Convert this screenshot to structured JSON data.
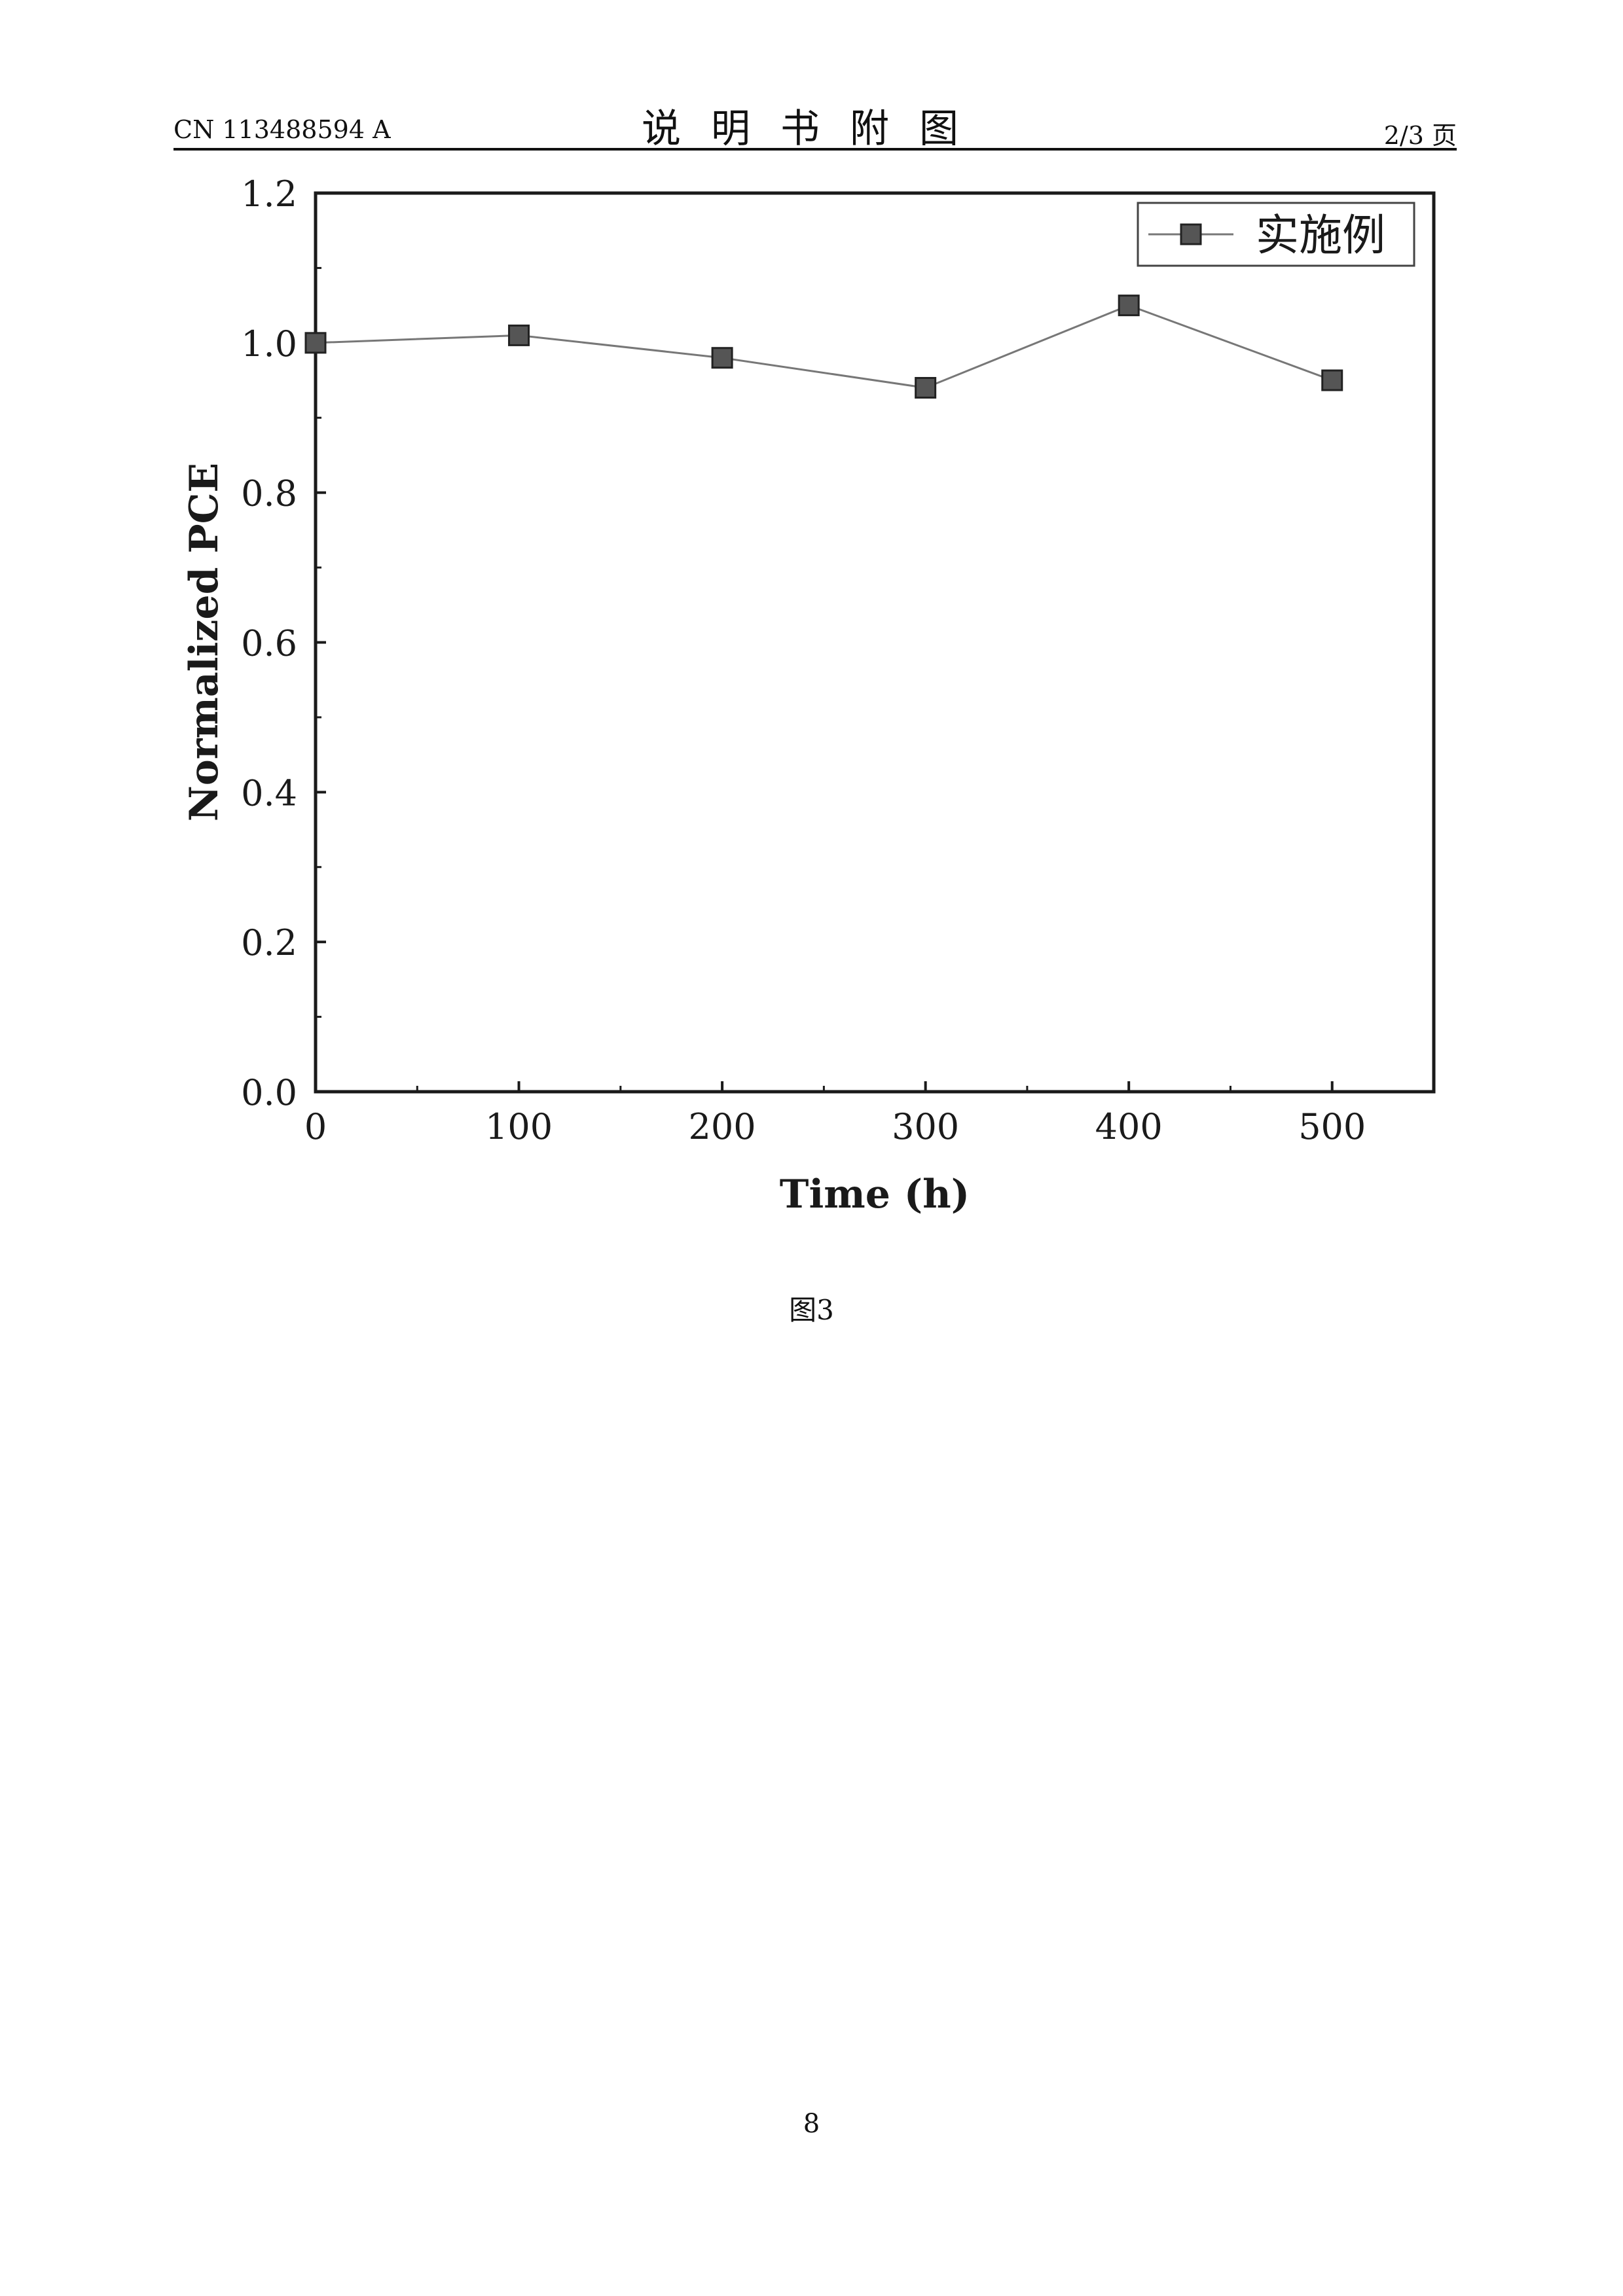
{
  "header": {
    "doc_number": "CN 113488594 A",
    "section_title": "说明书附图",
    "page_indicator": "2/3 页"
  },
  "figure_caption": "图3",
  "page_number": "8",
  "chart_data": {
    "type": "line",
    "title": "",
    "xlabel": "Time (h)",
    "ylabel": "Normalized PCE",
    "xlim": [
      0,
      550
    ],
    "ylim": [
      0.0,
      1.2
    ],
    "x_ticks": [
      0,
      100,
      200,
      300,
      400,
      500
    ],
    "x_tick_labels": [
      "0",
      "100",
      "200",
      "300",
      "400",
      "500"
    ],
    "y_ticks": [
      0.0,
      0.2,
      0.4,
      0.6,
      0.8,
      1.0,
      1.2
    ],
    "y_tick_labels": [
      "0.0",
      "0.2",
      "0.4",
      "0.6",
      "0.8",
      "1.0",
      "1.2"
    ],
    "grid": false,
    "legend_position": "top-right",
    "series": [
      {
        "name": "实施例",
        "marker": "square",
        "color": "#555555",
        "x": [
          0,
          100,
          200,
          300,
          400,
          500
        ],
        "y": [
          1.0,
          1.01,
          0.98,
          0.94,
          1.05,
          0.95
        ]
      }
    ]
  }
}
